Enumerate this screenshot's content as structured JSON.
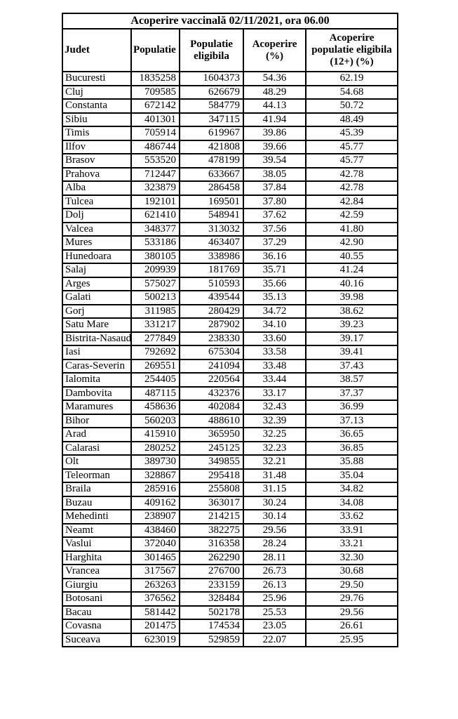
{
  "table": {
    "title": "Acoperire vaccinală 02/11/2021, ora 06.00",
    "columns": [
      "Judet",
      "Populatie",
      "Populatie eligibila",
      "Acoperire (%)",
      "Acoperire populatie eligibila (12+) (%)"
    ],
    "rows": [
      [
        "Bucuresti",
        "1835258",
        "1604373",
        "54.36",
        "62.19"
      ],
      [
        "Cluj",
        "709585",
        "626679",
        "48.29",
        "54.68"
      ],
      [
        "Constanta",
        "672142",
        "584779",
        "44.13",
        "50.72"
      ],
      [
        "Sibiu",
        "401301",
        "347115",
        "41.94",
        "48.49"
      ],
      [
        "Timis",
        "705914",
        "619967",
        "39.86",
        "45.39"
      ],
      [
        "Ilfov",
        "486744",
        "421808",
        "39.66",
        "45.77"
      ],
      [
        "Brasov",
        "553520",
        "478199",
        "39.54",
        "45.77"
      ],
      [
        "Prahova",
        "712447",
        "633667",
        "38.05",
        "42.78"
      ],
      [
        "Alba",
        "323879",
        "286458",
        "37.84",
        "42.78"
      ],
      [
        "Tulcea",
        "192101",
        "169501",
        "37.80",
        "42.84"
      ],
      [
        "Dolj",
        "621410",
        "548941",
        "37.62",
        "42.59"
      ],
      [
        "Valcea",
        "348377",
        "313032",
        "37.56",
        "41.80"
      ],
      [
        "Mures",
        "533186",
        "463407",
        "37.29",
        "42.90"
      ],
      [
        "Hunedoara",
        "380105",
        "338986",
        "36.16",
        "40.55"
      ],
      [
        "Salaj",
        "209939",
        "181769",
        "35.71",
        "41.24"
      ],
      [
        "Arges",
        "575027",
        "510593",
        "35.66",
        "40.16"
      ],
      [
        "Galati",
        "500213",
        "439544",
        "35.13",
        "39.98"
      ],
      [
        "Gorj",
        "311985",
        "280429",
        "34.72",
        "38.62"
      ],
      [
        "Satu Mare",
        "331217",
        "287902",
        "34.10",
        "39.23"
      ],
      [
        "Bistrita-Nasaud",
        "277849",
        "238330",
        "33.60",
        "39.17"
      ],
      [
        "Iasi",
        "792692",
        "675304",
        "33.58",
        "39.41"
      ],
      [
        "Caras-Severin",
        "269551",
        "241094",
        "33.48",
        "37.43"
      ],
      [
        "Ialomita",
        "254405",
        "220564",
        "33.44",
        "38.57"
      ],
      [
        "Dambovita",
        "487115",
        "432376",
        "33.17",
        "37.37"
      ],
      [
        "Maramures",
        "458636",
        "402084",
        "32.43",
        "36.99"
      ],
      [
        "Bihor",
        "560203",
        "488610",
        "32.39",
        "37.13"
      ],
      [
        "Arad",
        "415910",
        "365950",
        "32.25",
        "36.65"
      ],
      [
        "Calarasi",
        "280252",
        "245125",
        "32.23",
        "36.85"
      ],
      [
        "Olt",
        "389730",
        "349855",
        "32.21",
        "35.88"
      ],
      [
        "Teleorman",
        "328867",
        "295418",
        "31.48",
        "35.04"
      ],
      [
        "Braila",
        "285916",
        "255808",
        "31.15",
        "34.82"
      ],
      [
        "Buzau",
        "409162",
        "363017",
        "30.24",
        "34.08"
      ],
      [
        "Mehedinti",
        "238907",
        "214215",
        "30.14",
        "33.62"
      ],
      [
        "Neamt",
        "438460",
        "382275",
        "29.56",
        "33.91"
      ],
      [
        "Vaslui",
        "372040",
        "316358",
        "28.24",
        "33.21"
      ],
      [
        "Harghita",
        "301465",
        "262290",
        "28.11",
        "32.30"
      ],
      [
        "Vrancea",
        "317567",
        "276700",
        "26.73",
        "30.68"
      ],
      [
        "Giurgiu",
        "263263",
        "233159",
        "26.13",
        "29.50"
      ],
      [
        "Botosani",
        "376562",
        "328484",
        "25.96",
        "29.76"
      ],
      [
        "Bacau",
        "581442",
        "502178",
        "25.53",
        "29.56"
      ],
      [
        "Covasna",
        "201475",
        "174534",
        "23.05",
        "26.61"
      ],
      [
        "Suceava",
        "623019",
        "529859",
        "22.07",
        "25.95"
      ]
    ]
  }
}
